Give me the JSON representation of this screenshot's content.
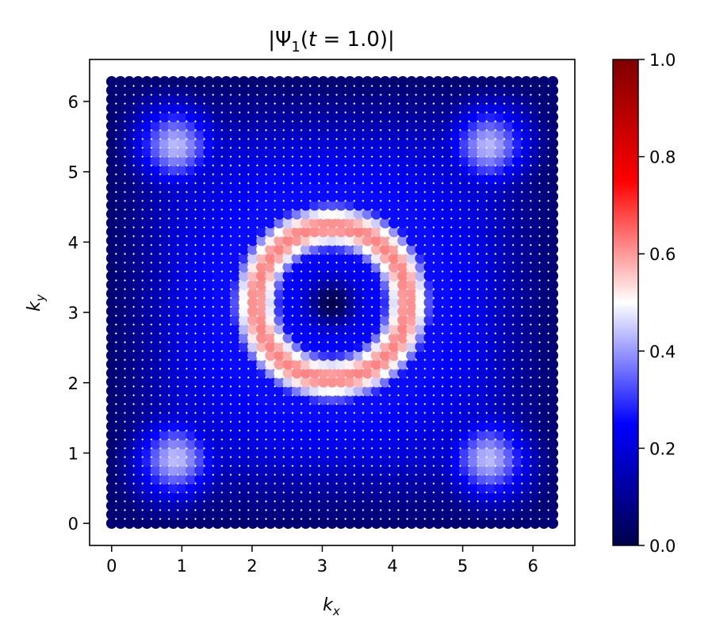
{
  "chart_data": {
    "type": "heatmap",
    "title": "|Ψ₁(t = 1.0)|",
    "title_parts": {
      "open": "|Ψ",
      "sub": "1",
      "mid": "(",
      "var": "t",
      "rest": " = 1.0)|"
    },
    "xlabel": {
      "main": "k",
      "sub": "x"
    },
    "ylabel": {
      "main": "k",
      "sub": "y"
    },
    "xlim": [
      -0.314,
      6.597
    ],
    "ylim": [
      -0.314,
      6.597
    ],
    "xticks": [
      0,
      1,
      2,
      3,
      4,
      5,
      6
    ],
    "yticks": [
      0,
      1,
      2,
      3,
      4,
      5,
      6
    ],
    "grid": {
      "n": 51,
      "kmin": 0,
      "kmax": 6.283
    },
    "value_model": "ring centred at (π, π) peaking ≈0.62 at radius ≈1.08; corner lobes ≈0.48 near (0.8,0.8),(5.5,0.8),(0.8,5.5),(5.5,5.5); minima ≈0 at centre, edges and corners",
    "colormap": "seismic",
    "colormap_stops": [
      "#00004c",
      "#0000ff",
      "#ffffff",
      "#ff0000",
      "#7f0000"
    ],
    "colorbar": {
      "range": [
        0.0,
        1.0
      ],
      "ticks": [
        "0.0",
        "0.2",
        "0.4",
        "0.6",
        "0.8",
        "1.0"
      ]
    },
    "features": {
      "center_min": {
        "kx": 3.14,
        "ky": 3.14,
        "value": 0.0
      },
      "ring": {
        "radius": 1.08,
        "peak": 0.62
      },
      "corner_lobes": {
        "peak": 0.48,
        "points": [
          [
            0.8,
            0.8
          ],
          [
            5.5,
            0.8
          ],
          [
            0.8,
            5.5
          ],
          [
            5.5,
            5.5
          ]
        ]
      }
    }
  }
}
